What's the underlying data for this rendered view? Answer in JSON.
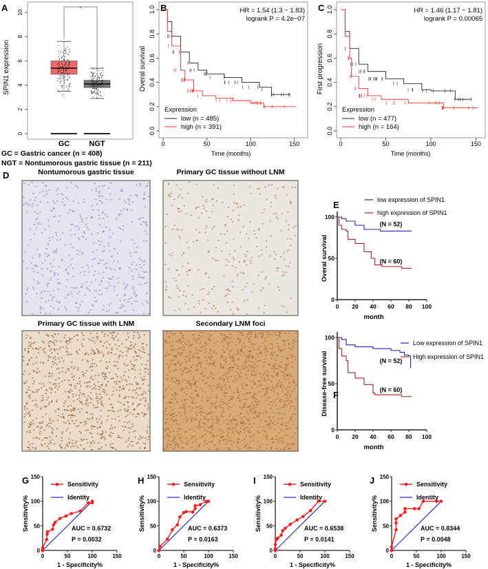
{
  "colors": {
    "gc_box": "#f26b6b",
    "ngt_box": "#777777",
    "km_low": "#222222",
    "km_high": "#ff2a2a",
    "e_low": "#2222aa",
    "e_high": "#aa2222",
    "roc_sens": "#ff1a1a",
    "roc_identity": "#2a2acc"
  },
  "panel_labels": [
    "A",
    "B",
    "C",
    "D",
    "E",
    "F",
    "G",
    "H",
    "I",
    "J"
  ],
  "chart_data": [
    {
      "id": "A",
      "type": "box",
      "ylabel": "SPIN1 expression",
      "yticks": [
        0,
        2,
        4,
        6,
        8,
        10
      ],
      "ylim": [
        0,
        11
      ],
      "categories": [
        "GC",
        "NGT"
      ],
      "boxes": [
        {
          "q1": 4.9,
          "median": 5.4,
          "q3": 6.0,
          "whisker_low": 3.5,
          "whisker_high": 7.6,
          "min": 2.9,
          "max": 10
        },
        {
          "q1": 3.8,
          "median": 4.1,
          "q3": 4.4,
          "whisker_low": 2.9,
          "whisker_high": 5.4,
          "min": 2.9,
          "max": 5.4
        }
      ],
      "significance": "*",
      "notes": [
        "GC = Gastric cancer (n = 408)",
        "NGT = Nontumorous gastric tissue (n = 211)"
      ]
    },
    {
      "id": "B",
      "type": "line",
      "ylabel": "Overal survival",
      "xlabel": "Time (months)",
      "xticks": [
        0,
        50,
        100,
        150
      ],
      "yticks": [
        "0.0",
        "0.2",
        "0.4",
        "0.6",
        "0.8",
        "1.0"
      ],
      "xlim": [
        0,
        155
      ],
      "ylim": [
        0,
        1
      ],
      "annotation": [
        "HR = 1.54 (1.3 − 1.83)",
        "logrank P = 4.2e−07"
      ],
      "legend_title": "Expression",
      "legend_position": "bottom-left",
      "series": [
        {
          "name": "low (n = 485)",
          "color": "#222222",
          "points": [
            [
              0,
              1
            ],
            [
              5,
              0.9
            ],
            [
              10,
              0.78
            ],
            [
              20,
              0.65
            ],
            [
              30,
              0.56
            ],
            [
              40,
              0.5
            ],
            [
              50,
              0.47
            ],
            [
              70,
              0.44
            ],
            [
              90,
              0.4
            ],
            [
              110,
              0.36
            ],
            [
              124,
              0.34
            ],
            [
              124,
              0.3
            ],
            [
              145,
              0.3
            ]
          ]
        },
        {
          "name": "high (n = 391)",
          "color": "#ff2a2a",
          "points": [
            [
              0,
              1
            ],
            [
              5,
              0.82
            ],
            [
              10,
              0.7
            ],
            [
              20,
              0.5
            ],
            [
              25,
              0.42
            ],
            [
              35,
              0.33
            ],
            [
              45,
              0.29
            ],
            [
              60,
              0.27
            ],
            [
              80,
              0.25
            ],
            [
              100,
              0.23
            ],
            [
              115,
              0.23
            ],
            [
              115,
              0.2
            ],
            [
              152,
              0.2
            ]
          ]
        }
      ]
    },
    {
      "id": "C",
      "type": "line",
      "ylabel": "First progression",
      "xlabel": "Time (months)",
      "xticks": [
        0,
        50,
        100,
        150
      ],
      "yticks": [
        "0.0",
        "0.2",
        "0.4",
        "0.6",
        "0.8",
        "1.0"
      ],
      "xlim": [
        0,
        155
      ],
      "ylim": [
        0,
        1
      ],
      "annotation": [
        "HR = 1.46 (1.17 − 1.81)",
        "logrank P = 0.00065"
      ],
      "legend_title": "Expression",
      "legend_position": "bottom-left",
      "series": [
        {
          "name": "low (n = 477)",
          "color": "#222222",
          "points": [
            [
              0,
              1
            ],
            [
              5,
              0.82
            ],
            [
              10,
              0.68
            ],
            [
              20,
              0.55
            ],
            [
              30,
              0.49
            ],
            [
              50,
              0.43
            ],
            [
              70,
              0.39
            ],
            [
              90,
              0.34
            ],
            [
              100,
              0.33
            ],
            [
              125,
              0.33
            ],
            [
              127,
              0.26
            ],
            [
              145,
              0.26
            ]
          ]
        },
        {
          "name": "high (n = 164)",
          "color": "#ff2a2a",
          "points": [
            [
              0,
              1
            ],
            [
              5,
              0.78
            ],
            [
              10,
              0.6
            ],
            [
              12,
              0.45
            ],
            [
              20,
              0.35
            ],
            [
              30,
              0.29
            ],
            [
              45,
              0.26
            ],
            [
              75,
              0.23
            ],
            [
              112,
              0.23
            ],
            [
              114,
              0.19
            ],
            [
              152,
              0.19
            ]
          ]
        }
      ]
    },
    {
      "id": "E",
      "type": "line",
      "ylabel": "Overal survival",
      "xlabel": "month",
      "xticks": [
        0,
        20,
        40,
        60,
        80,
        100
      ],
      "yticks": [
        0,
        50,
        100
      ],
      "xlim": [
        0,
        100
      ],
      "ylim": [
        0,
        100
      ],
      "legend_position": "top",
      "series": [
        {
          "name": "low expression of SPIN1",
          "label": "(N = 52)",
          "color": "#2222aa",
          "points": [
            [
              0,
              100
            ],
            [
              5,
              98
            ],
            [
              10,
              95
            ],
            [
              20,
              90
            ],
            [
              30,
              85
            ],
            [
              48,
              85
            ],
            [
              48,
              83
            ],
            [
              83,
              83
            ]
          ]
        },
        {
          "name": "high expression of SPIN1",
          "label": "(N = 60)",
          "color": "#aa2222",
          "points": [
            [
              0,
              100
            ],
            [
              2,
              90
            ],
            [
              5,
              85
            ],
            [
              10,
              83
            ],
            [
              12,
              73
            ],
            [
              20,
              68
            ],
            [
              30,
              58
            ],
            [
              38,
              50
            ],
            [
              42,
              42
            ],
            [
              50,
              40
            ],
            [
              72,
              40
            ],
            [
              72,
              38
            ],
            [
              83,
              38
            ]
          ]
        }
      ]
    },
    {
      "id": "F",
      "type": "line",
      "ylabel": "Disease-free survival",
      "xlabel": "month",
      "xticks": [
        0,
        20,
        40,
        60,
        80,
        100
      ],
      "yticks": [
        0,
        50,
        100
      ],
      "xlim": [
        0,
        100
      ],
      "ylim": [
        0,
        100
      ],
      "legend_position": "right",
      "series": [
        {
          "name": "Low expression of SPIN1",
          "label": "(N = 52)",
          "color": "#2222aa",
          "points": [
            [
              0,
              100
            ],
            [
              5,
              98
            ],
            [
              10,
              92
            ],
            [
              20,
              90
            ],
            [
              40,
              88
            ],
            [
              60,
              86
            ],
            [
              70,
              84
            ],
            [
              75,
              81
            ],
            [
              80,
              80
            ],
            [
              82,
              80
            ],
            [
              82,
              67
            ]
          ]
        },
        {
          "name": "High expression of SPIN1",
          "label": "(N = 60)",
          "color": "#aa2222",
          "points": [
            [
              0,
              100
            ],
            [
              2,
              88
            ],
            [
              5,
              80
            ],
            [
              10,
              75
            ],
            [
              12,
              62
            ],
            [
              20,
              56
            ],
            [
              30,
              49
            ],
            [
              40,
              40
            ],
            [
              42,
              38
            ],
            [
              72,
              38
            ],
            [
              72,
              36
            ],
            [
              83,
              36
            ]
          ]
        }
      ]
    },
    {
      "id": "G",
      "type": "line",
      "ylabel": "Sensitivity%",
      "xlabel": "1 - Specificity%",
      "xticks": [
        0,
        50,
        100,
        150
      ],
      "yticks": [
        0,
        50,
        100,
        150
      ],
      "xlim": [
        0,
        150
      ],
      "ylim": [
        0,
        150
      ],
      "auc": "AUC = 0.6732",
      "p": "P = 0.0032",
      "legend": [
        "Sensitivity",
        "Identity"
      ],
      "points": [
        [
          0,
          0
        ],
        [
          0,
          5
        ],
        [
          8,
          22
        ],
        [
          9,
          33
        ],
        [
          10,
          38
        ],
        [
          20,
          43
        ],
        [
          22,
          52
        ],
        [
          25,
          57
        ],
        [
          35,
          65
        ],
        [
          47,
          70
        ],
        [
          58,
          75
        ],
        [
          76,
          80
        ],
        [
          92,
          97
        ],
        [
          100,
          97
        ],
        [
          100,
          100
        ]
      ]
    },
    {
      "id": "H",
      "type": "line",
      "ylabel": "Sensitivity%",
      "xlabel": "1 - Specificity%",
      "xticks": [
        0,
        50,
        100,
        150
      ],
      "yticks": [
        0,
        50,
        100,
        150
      ],
      "xlim": [
        0,
        150
      ],
      "ylim": [
        0,
        150
      ],
      "auc": "AUC = 0.6373",
      "p": "P = 0.0163",
      "legend": [
        "Sensitivity",
        "Identity"
      ],
      "points": [
        [
          0,
          0
        ],
        [
          2,
          8
        ],
        [
          17,
          23
        ],
        [
          27,
          42
        ],
        [
          37,
          52
        ],
        [
          42,
          68
        ],
        [
          50,
          77
        ],
        [
          55,
          79
        ],
        [
          68,
          78
        ],
        [
          73,
          85
        ],
        [
          73,
          91
        ],
        [
          83,
          93
        ],
        [
          95,
          100
        ],
        [
          100,
          100
        ]
      ]
    },
    {
      "id": "I",
      "type": "line",
      "ylabel": "Sensitivity%",
      "xlabel": "1 - Specificity%",
      "xticks": [
        0,
        50,
        100,
        150
      ],
      "yticks": [
        0,
        50,
        100,
        150
      ],
      "xlim": [
        0,
        150
      ],
      "ylim": [
        0,
        150
      ],
      "auc": "AUC = 0.6538",
      "p": "P = 0.0141",
      "legend": [
        "Sensitivity",
        "Identity"
      ],
      "points": [
        [
          0,
          0
        ],
        [
          0,
          3
        ],
        [
          0,
          12
        ],
        [
          2,
          22
        ],
        [
          5,
          25
        ],
        [
          12,
          31
        ],
        [
          15,
          40
        ],
        [
          20,
          45
        ],
        [
          30,
          53
        ],
        [
          44,
          62
        ],
        [
          56,
          69
        ],
        [
          71,
          81
        ],
        [
          87,
          100
        ],
        [
          100,
          100
        ]
      ]
    },
    {
      "id": "J",
      "type": "line",
      "ylabel": "Sensitivity%",
      "xlabel": "1 - Specificity%",
      "xticks": [
        0,
        50,
        100,
        150
      ],
      "yticks": [
        0,
        50,
        100,
        150
      ],
      "xlim": [
        0,
        150
      ],
      "ylim": [
        0,
        150
      ],
      "auc": "AUC = 0.8344",
      "p": "P = 0.0048",
      "legend": [
        "Sensitivity",
        "Identity"
      ],
      "points": [
        [
          0,
          0
        ],
        [
          0,
          7
        ],
        [
          9,
          42
        ],
        [
          9,
          56
        ],
        [
          9,
          64
        ],
        [
          18,
          71
        ],
        [
          27,
          78
        ],
        [
          27,
          85
        ],
        [
          46,
          85
        ],
        [
          55,
          85
        ],
        [
          64,
          100
        ],
        [
          91,
          100
        ],
        [
          100,
          100
        ]
      ]
    }
  ],
  "micrographs": [
    {
      "title": "Nontumorous gastric tissue",
      "stain": "#7a7ac0",
      "bg": "#e6e2ee"
    },
    {
      "title": "Primary GC tissue without LNM",
      "stain": "#9a6a3a",
      "bg": "#ece6e0"
    },
    {
      "title": "Primary GC tissue with LNM",
      "stain": "#8a4a1a",
      "bg": "#eadcc8"
    },
    {
      "title": "Secondary LNM foci",
      "stain": "#a0602a",
      "bg": "#d8a878"
    }
  ]
}
